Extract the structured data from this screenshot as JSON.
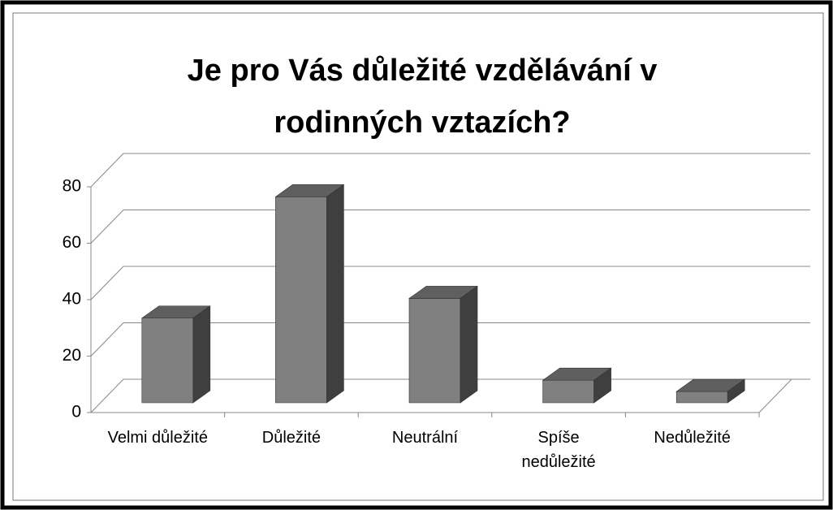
{
  "chart_data": {
    "type": "bar3d",
    "title": "Je pro Vás důležité vzdělávání v rodinných vztazích?",
    "categories": [
      "Velmi důležité",
      "Důležité",
      "Neutrální",
      "Spíše nedůležité",
      "Nedůležité"
    ],
    "values": [
      30,
      73,
      37,
      8,
      4
    ],
    "color": "#808080",
    "ylim": [
      0,
      80
    ],
    "yticks": [
      0,
      20,
      40,
      60,
      80
    ],
    "grid": true
  }
}
